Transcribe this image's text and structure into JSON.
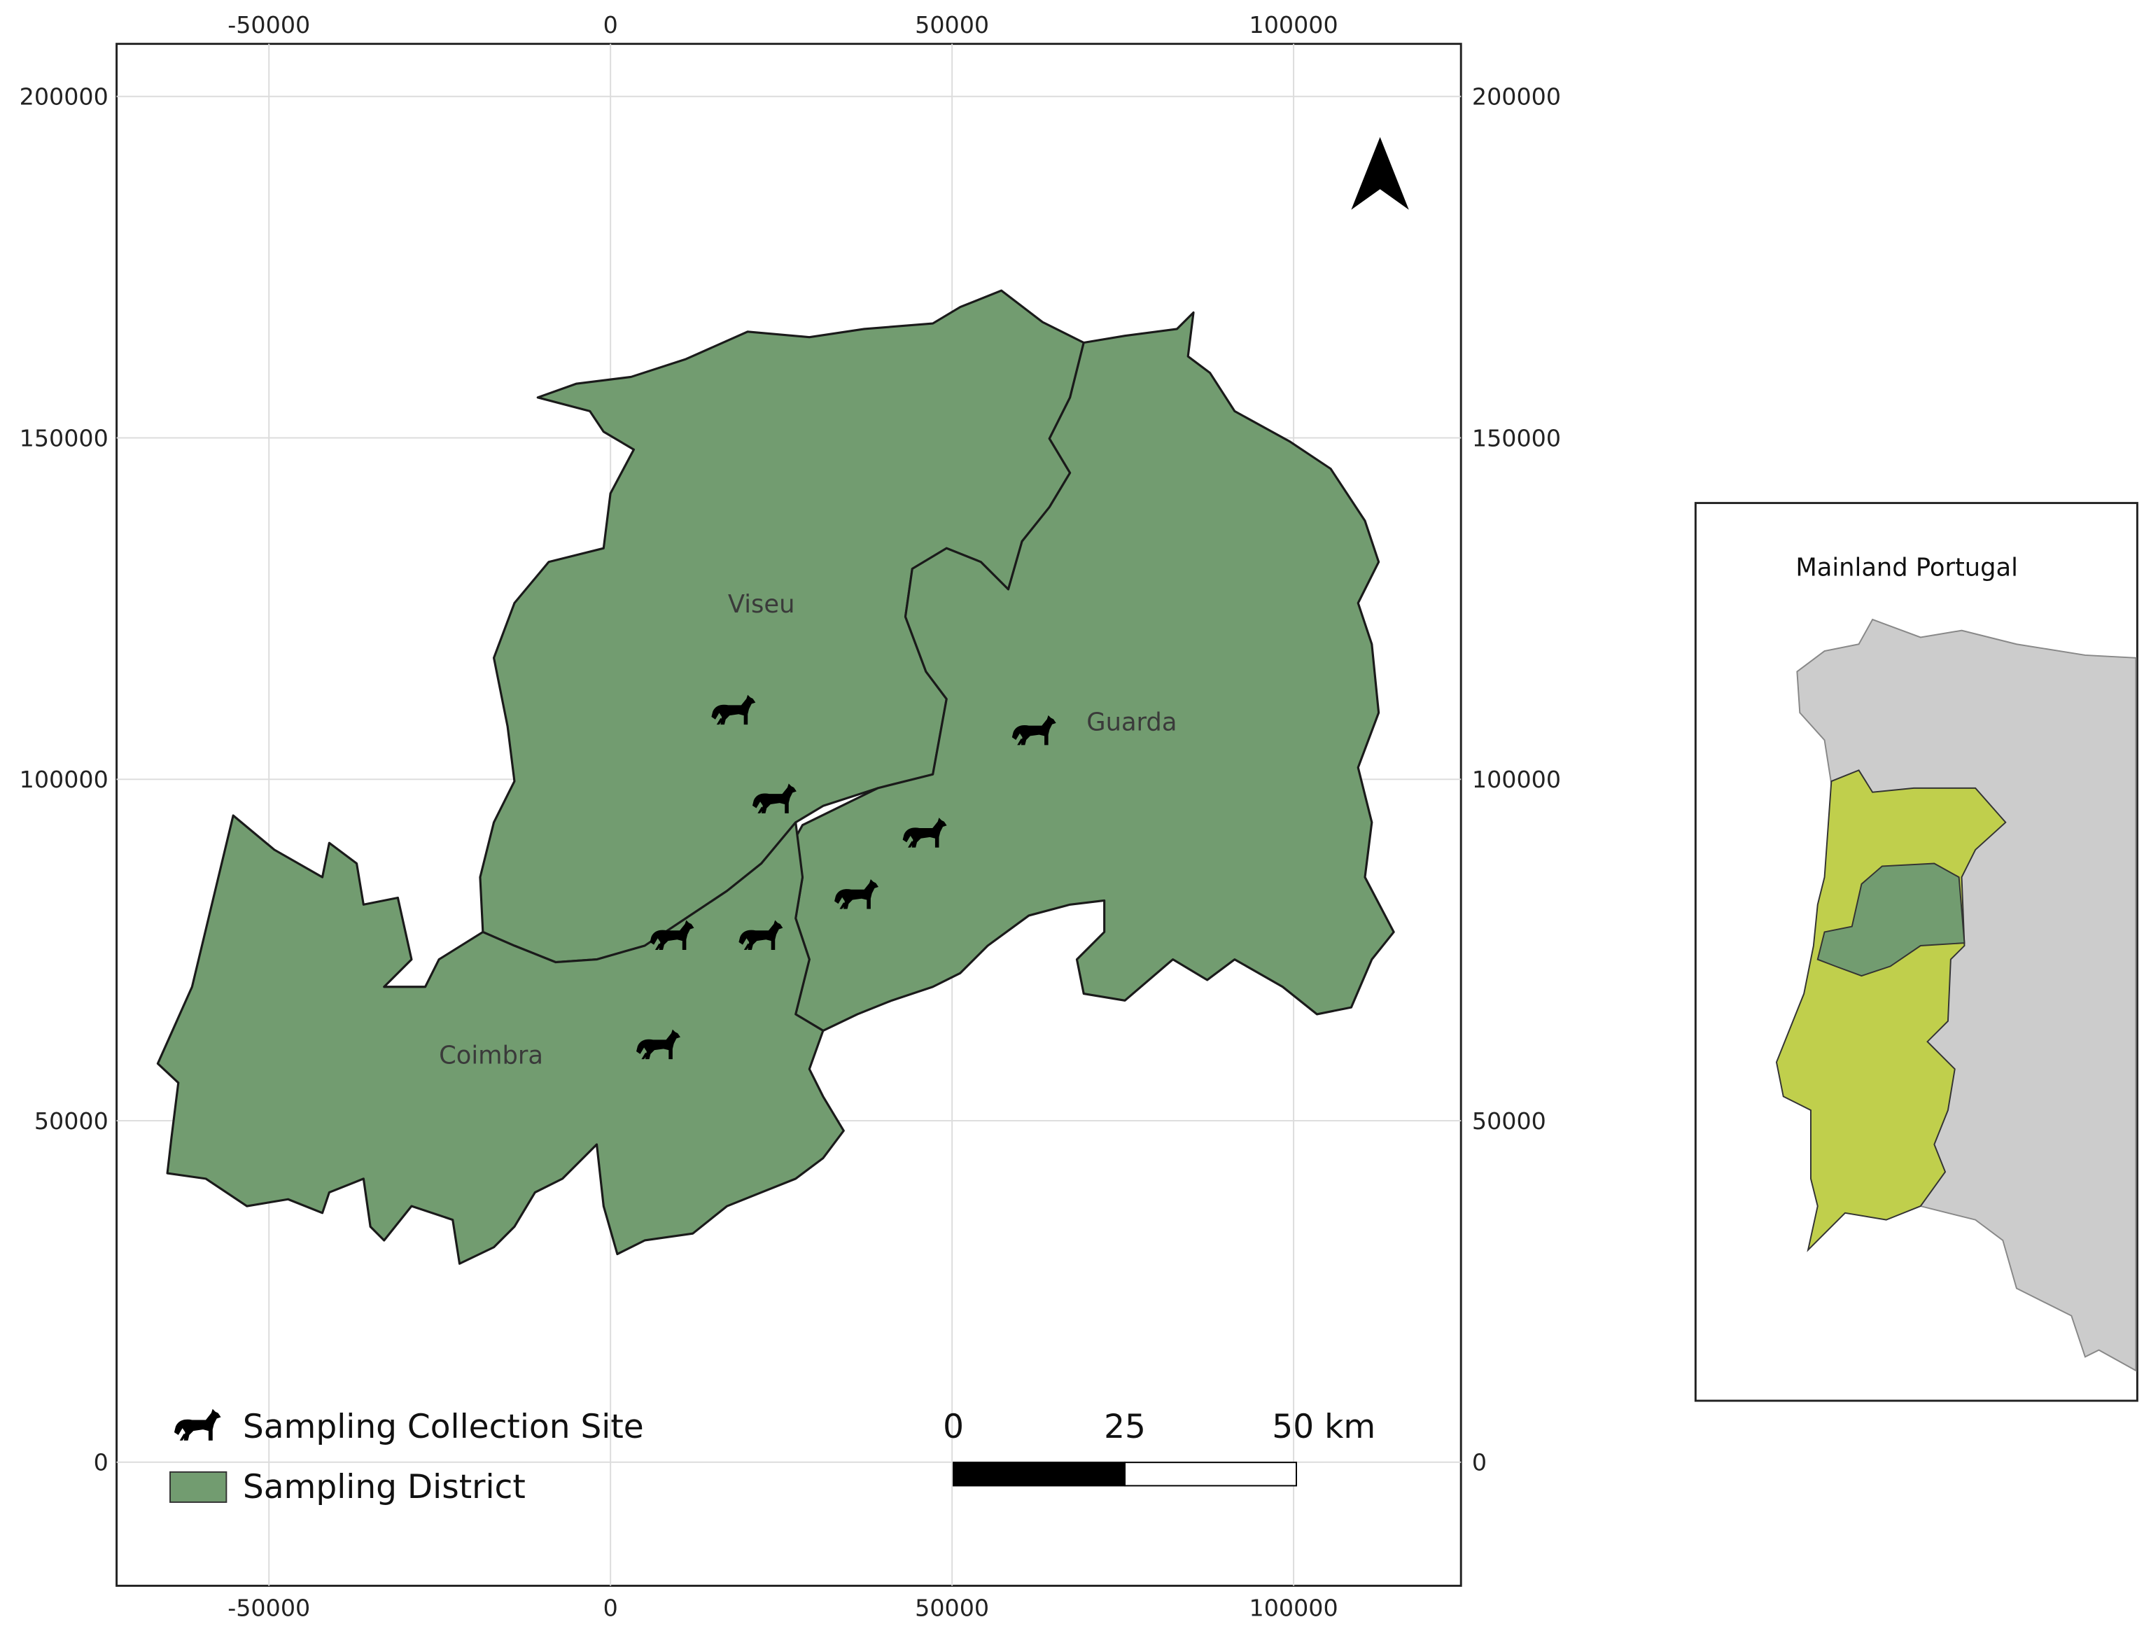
{
  "map": {
    "xlim": [
      -72300,
      124500
    ],
    "ylim": [
      -18100,
      207700
    ],
    "xticks": [
      -50000,
      0,
      50000,
      100000
    ],
    "yticks": [
      0,
      50000,
      100000,
      150000,
      200000
    ],
    "grid": true,
    "districts": [
      "Viseu",
      "Guarda",
      "Coimbra"
    ],
    "sites": {
      "x": [
        18000,
        24000,
        46000,
        36000,
        9000,
        22000,
        7000,
        62000
      ],
      "y": [
        110000,
        97000,
        92000,
        83000,
        77000,
        77000,
        61000,
        107000
      ]
    },
    "legend": {
      "site": "Sampling Collection Site",
      "district": "Sampling District"
    },
    "scale_bar": [
      "0",
      "25",
      "50 km"
    ],
    "inset": {
      "title": "Mainland Portugal"
    }
  }
}
